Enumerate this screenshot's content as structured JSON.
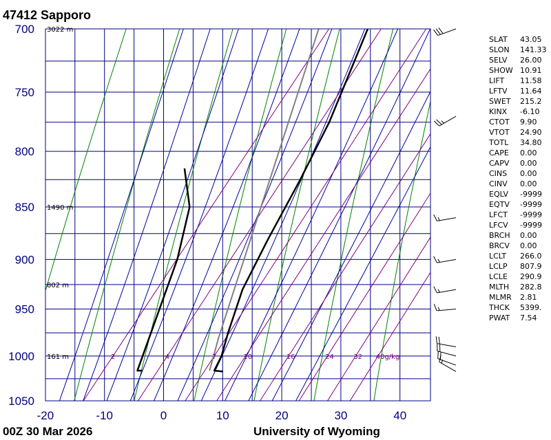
{
  "title": "47412  Sapporo",
  "footer": {
    "time": "00Z 30 Mar 2026",
    "source": "University of Wyoming"
  },
  "chart_data": {
    "type": "skew-t",
    "pressure_ticks": [
      "700",
      "750",
      "800",
      "850",
      "900",
      "950",
      "1000",
      "1050"
    ],
    "pressure_lines": [
      700,
      725,
      750,
      775,
      800,
      825,
      850,
      875,
      900,
      925,
      950,
      975,
      1000,
      1025,
      1050
    ],
    "temp_ticks": [
      "-20",
      "-10",
      "0",
      "10",
      "20",
      "30",
      "40"
    ],
    "temp_ticks_values": [
      -20,
      -10,
      0,
      10,
      20,
      30,
      40
    ],
    "height_labels": [
      {
        "text": "3022 m",
        "p": 700
      },
      {
        "text": "1490 m",
        "p": 850
      },
      {
        "text": "802 m",
        "p": 925
      },
      {
        "text": "161 m",
        "p": 1000
      }
    ],
    "mixing_ratio_labels": [
      "2",
      "4",
      "7",
      "10",
      "16",
      "24",
      "32",
      "40g/kg"
    ],
    "mixing_ratio_values": [
      2,
      4,
      7,
      10,
      16,
      24,
      32,
      40
    ],
    "temperature_profile": [
      {
        "p": 1017,
        "t": 12.0
      },
      {
        "p": 1016,
        "t": 10.4
      },
      {
        "p": 1000,
        "t": 9.8
      },
      {
        "p": 975,
        "t": 8.0
      },
      {
        "p": 930,
        "t": 5.0
      },
      {
        "p": 880,
        "t": 3.0
      },
      {
        "p": 825,
        "t": 1.0
      },
      {
        "p": 775,
        "t": -1.3
      },
      {
        "p": 700,
        "t": -6.5
      }
    ],
    "dewpoint_profile": [
      {
        "p": 1016,
        "t": -1.8
      },
      {
        "p": 1016,
        "t": -2.6
      },
      {
        "p": 900,
        "t": -9.8
      },
      {
        "p": 850,
        "t": -14.3
      },
      {
        "p": 815,
        "t": -20.0
      }
    ],
    "parcel_path": [
      {
        "p": 1016,
        "t": 9.6
      },
      {
        "p": 980,
        "t": 7.0
      },
      {
        "p": 700,
        "t": -14.8
      }
    ],
    "winds": [
      {
        "p": 700,
        "dir": 250,
        "kt": 30
      },
      {
        "p": 770,
        "dir": 240,
        "kt": 25
      },
      {
        "p": 860,
        "dir": 260,
        "kt": 15
      },
      {
        "p": 900,
        "dir": 260,
        "kt": 15
      },
      {
        "p": 930,
        "dir": 260,
        "kt": 15
      },
      {
        "p": 950,
        "dir": 265,
        "kt": 15
      },
      {
        "p": 990,
        "dir": 280,
        "kt": 20
      },
      {
        "p": 1000,
        "dir": 285,
        "kt": 20
      },
      {
        "p": 1010,
        "dir": 290,
        "kt": 20
      },
      {
        "p": 1017,
        "dir": 300,
        "kt": 15
      }
    ],
    "colors": {
      "grid": "#000080",
      "dry_adiabat": "#008000",
      "moist_adiabat": "#0000a0",
      "mixing_ratio": "#800080",
      "temperature": "#000000",
      "dewpoint": "#000000",
      "parcel": "#808080"
    }
  },
  "indices": [
    {
      "key": "SLAT",
      "value": "43.05"
    },
    {
      "key": "SLON",
      "value": "141.33"
    },
    {
      "key": "SELV",
      "value": "26.00"
    },
    {
      "key": "SHOW",
      "value": "10.91"
    },
    {
      "key": "LIFT",
      "value": "11.58"
    },
    {
      "key": "LFTV",
      "value": "11.64"
    },
    {
      "key": "SWET",
      "value": "215.2"
    },
    {
      "key": "KINX",
      "value": "-6.10"
    },
    {
      "key": "CTOT",
      "value": "9.90"
    },
    {
      "key": "VTOT",
      "value": "24.90"
    },
    {
      "key": "TOTL",
      "value": "34.80"
    },
    {
      "key": "CAPE",
      "value": "0.00"
    },
    {
      "key": "CAPV",
      "value": "0.00"
    },
    {
      "key": "CINS",
      "value": "0.00"
    },
    {
      "key": "CINV",
      "value": "0.00"
    },
    {
      "key": "EQLV",
      "value": "-9999"
    },
    {
      "key": "EQTV",
      "value": "-9999"
    },
    {
      "key": "LFCT",
      "value": "-9999"
    },
    {
      "key": "LFCV",
      "value": "-9999"
    },
    {
      "key": "BRCH",
      "value": "0.00"
    },
    {
      "key": "BRCV",
      "value": "0.00"
    },
    {
      "key": "LCLT",
      "value": "266.0"
    },
    {
      "key": "LCLP",
      "value": "807.9"
    },
    {
      "key": "LCLE",
      "value": "290.9"
    },
    {
      "key": "MLTH",
      "value": "282.8"
    },
    {
      "key": "MLMR",
      "value": "2.81"
    },
    {
      "key": "THCK",
      "value": "5399."
    },
    {
      "key": "PWAT",
      "value": "7.54"
    }
  ]
}
